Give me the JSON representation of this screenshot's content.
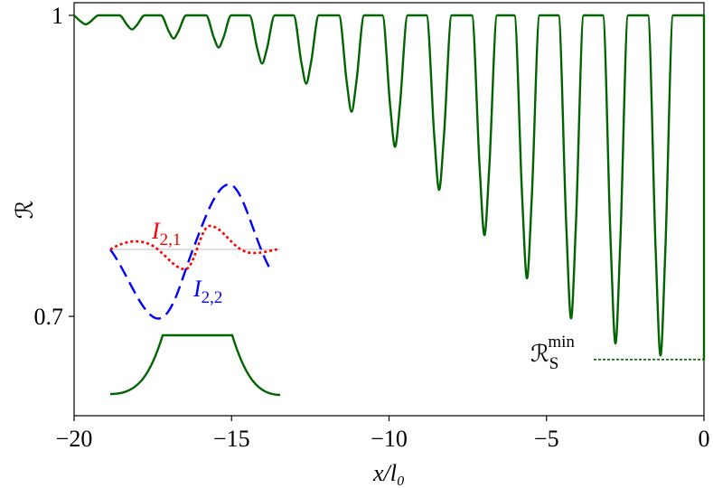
{
  "chart_data": {
    "type": "line",
    "ylabel": "ℛ",
    "xlabel": "x/l₀",
    "xlim": [
      -20,
      0
    ],
    "ylim": [
      0.601,
      1.0126
    ],
    "xticks": [
      {
        "value": -20,
        "label": "−20"
      },
      {
        "value": -15,
        "label": "−15"
      },
      {
        "value": -10,
        "label": "−10"
      },
      {
        "value": -5,
        "label": "−5"
      },
      0
    ],
    "yticks": [
      0.7,
      1
    ],
    "series": [
      {
        "color": "#006400",
        "x": [
          -20,
          -19.78,
          -19.63,
          -19.48,
          -19.23,
          -18.56,
          -18.31,
          -18.16,
          -18.01,
          -17.76,
          -17.24,
          -16.99,
          -16.84,
          -16.69,
          -16.44,
          -15.81,
          -15.56,
          -15.41,
          -15.26,
          -15.01,
          -14.43,
          -14.18,
          -14.03,
          -13.88,
          -13.63,
          -13.03,
          -12.78,
          -12.63,
          -12.48,
          -12.23,
          -11.59,
          -11.34,
          -11.19,
          -11.04,
          -10.79,
          -10.21,
          -9.96,
          -9.81,
          -9.66,
          -9.41,
          -8.81,
          -8.56,
          -8.41,
          -8.26,
          -8.01,
          -7.37,
          -7.12,
          -6.97,
          -6.82,
          -6.57,
          -6.02,
          -5.77,
          -5.62,
          -5.47,
          -5.22,
          -4.62,
          -4.37,
          -4.22,
          -4.07,
          -3.82,
          -3.21,
          -2.96,
          -2.81,
          -2.66,
          -2.41,
          -1.78,
          -1.53,
          -1.38,
          -1.23,
          -0.98,
          0,
          0
        ],
        "values": [
          1,
          0.9937,
          0.991,
          0.9937,
          1,
          1,
          0.9902,
          0.986,
          0.9902,
          1,
          1,
          0.9839,
          0.977,
          0.9839,
          1,
          1,
          0.9776,
          0.968,
          0.9776,
          1,
          1,
          0.9664,
          0.952,
          0.9664,
          1,
          1,
          0.9524,
          0.932,
          0.9524,
          1,
          1,
          0.9328,
          0.904,
          0.9328,
          1,
          1,
          0.9083,
          0.869,
          0.9083,
          1,
          1,
          0.8782,
          0.826,
          0.8782,
          1,
          1,
          0.8467,
          0.781,
          0.8467,
          1,
          1,
          0.8166,
          0.738,
          0.8166,
          1,
          1,
          0.7886,
          0.698,
          0.7886,
          1,
          1,
          0.7711,
          0.673,
          0.7711,
          1,
          1,
          0.7627,
          0.661,
          0.7627,
          1,
          1,
          0.657
        ]
      }
    ],
    "reference_line": {
      "label": "ℛ",
      "label_sub": "S",
      "label_sup": "min",
      "value": 0.657,
      "x_start": -3.5,
      "color": "#006400"
    },
    "inset_labels": [
      {
        "text": "I",
        "sub": "2,1",
        "color": "#ff0000"
      },
      {
        "text": "I",
        "sub": "2,2",
        "color": "#0000ff"
      }
    ]
  }
}
